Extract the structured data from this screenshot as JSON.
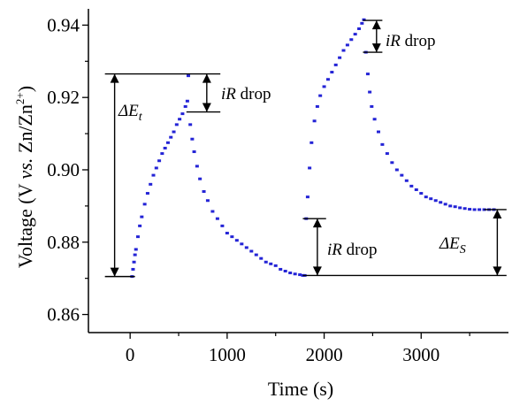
{
  "chart_data": {
    "type": "scatter",
    "title": "",
    "xlabel": "Time (s)",
    "ylabel": {
      "pre": "Voltage (V ",
      "vs": "vs.",
      "mid": " Zn/Zn",
      "sup": "2+",
      "post": ")"
    },
    "xlim": [
      -430,
      3900
    ],
    "ylim": [
      0.855,
      0.9445
    ],
    "x_ticks": [
      0,
      1000,
      2000,
      3000
    ],
    "x_tick_labels": [
      "0",
      "1000",
      "2000",
      "3000"
    ],
    "y_ticks": [
      0.86,
      0.88,
      0.9,
      0.92,
      0.94
    ],
    "y_tick_labels": [
      "0.86",
      "0.88",
      "0.90",
      "0.92",
      "0.94"
    ],
    "grid": false,
    "marker_color": "#2424d6",
    "series": [
      {
        "x": [
          20,
          30,
          40,
          50,
          60,
          80,
          100,
          120,
          150,
          180,
          210,
          240,
          270,
          300,
          330,
          360,
          390,
          420,
          450,
          480,
          510,
          540,
          570,
          590,
          600,
          620,
          640,
          660,
          690,
          720,
          760,
          800,
          850,
          900,
          950,
          1000,
          1050,
          1100,
          1150,
          1200,
          1250,
          1300,
          1350,
          1400,
          1450,
          1500,
          1550,
          1600,
          1650,
          1700,
          1750,
          1780,
          1800,
          1815,
          1830,
          1850,
          1870,
          1900,
          1930,
          1960,
          2000,
          2040,
          2080,
          2120,
          2160,
          2200,
          2240,
          2280,
          2320,
          2360,
          2390,
          2410,
          2430,
          2450,
          2470,
          2490,
          2520,
          2560,
          2600,
          2650,
          2700,
          2750,
          2800,
          2850,
          2900,
          2950,
          3000,
          3050,
          3100,
          3150,
          3200,
          3250,
          3300,
          3350,
          3400,
          3450,
          3500,
          3550,
          3600,
          3650,
          3700,
          3750
        ],
        "y": [
          0.8705,
          0.8725,
          0.8745,
          0.8765,
          0.878,
          0.8815,
          0.8845,
          0.887,
          0.8905,
          0.8935,
          0.896,
          0.8985,
          0.9005,
          0.9025,
          0.9045,
          0.906,
          0.9075,
          0.909,
          0.9105,
          0.9125,
          0.914,
          0.9155,
          0.9175,
          0.919,
          0.926,
          0.9125,
          0.9085,
          0.905,
          0.901,
          0.8975,
          0.894,
          0.8915,
          0.8885,
          0.8865,
          0.8845,
          0.8825,
          0.8815,
          0.8805,
          0.8795,
          0.8785,
          0.8775,
          0.8765,
          0.8755,
          0.8745,
          0.874,
          0.8735,
          0.8725,
          0.872,
          0.8715,
          0.8712,
          0.871,
          0.8708,
          0.8708,
          0.8865,
          0.8925,
          0.9005,
          0.9075,
          0.9135,
          0.9175,
          0.9205,
          0.923,
          0.925,
          0.927,
          0.929,
          0.931,
          0.933,
          0.9345,
          0.936,
          0.9375,
          0.939,
          0.9405,
          0.9415,
          0.9325,
          0.9265,
          0.9215,
          0.9175,
          0.914,
          0.9105,
          0.907,
          0.9045,
          0.902,
          0.9,
          0.8985,
          0.897,
          0.8955,
          0.8945,
          0.8935,
          0.8925,
          0.892,
          0.8915,
          0.891,
          0.8905,
          0.89,
          0.8898,
          0.8895,
          0.8893,
          0.8891,
          0.889,
          0.889,
          0.889,
          0.889,
          0.889
        ]
      }
    ],
    "annotations": {
      "delta_et": {
        "symbol": "ΔE",
        "subscript": "t"
      },
      "delta_es": {
        "symbol": "ΔE",
        "subscript": "S"
      },
      "ir_drop_1": {
        "italic": "iR",
        "text": " drop"
      },
      "ir_drop_2": {
        "italic": "iR",
        "text": " drop"
      },
      "ir_drop_3": {
        "italic": "iR",
        "text": " drop"
      }
    }
  }
}
